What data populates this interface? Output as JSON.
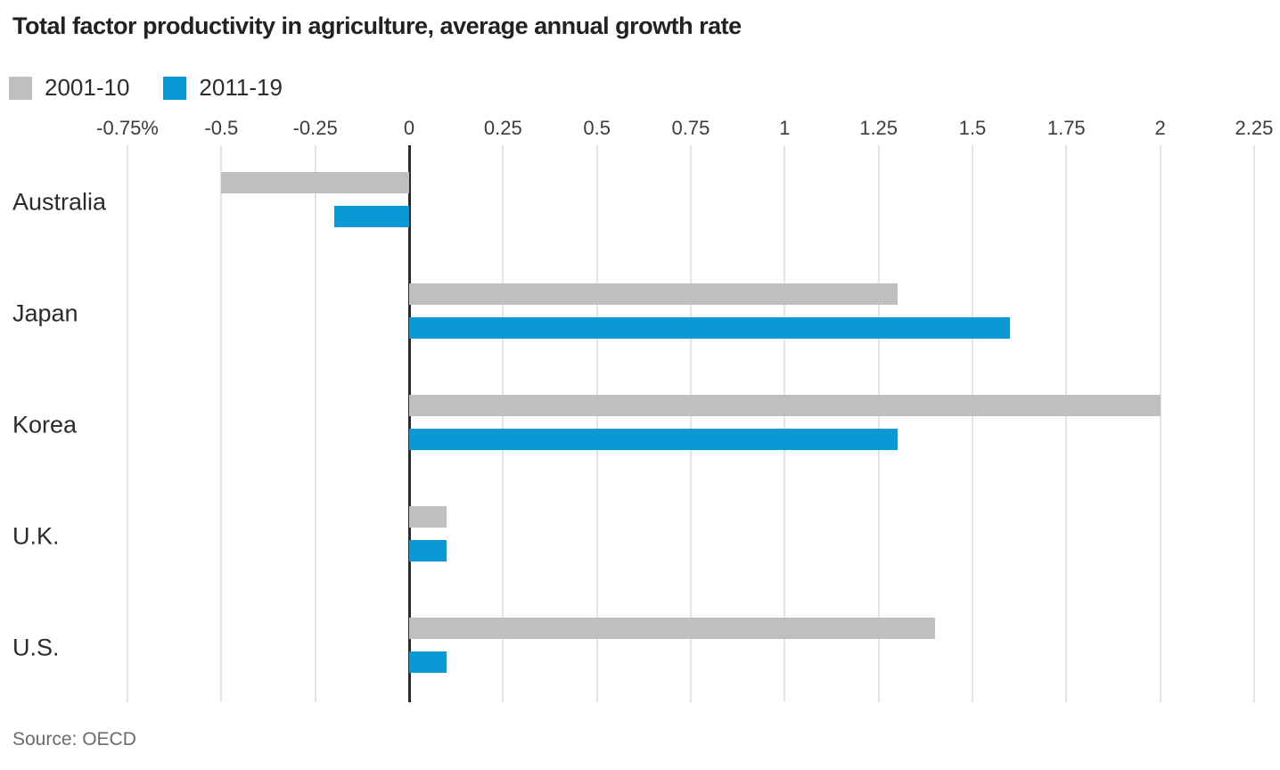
{
  "chart_data": {
    "type": "bar",
    "orientation": "horizontal",
    "title": "Total factor productivity in agriculture, average annual growth rate",
    "source": "Source: OECD",
    "unit": "%",
    "categories": [
      "Australia",
      "Japan",
      "Korea",
      "U.K.",
      "U.S."
    ],
    "series": [
      {
        "name": "2001-10",
        "color": "#bfbfbf",
        "values": [
          -0.5,
          1.3,
          2.0,
          0.1,
          1.4
        ]
      },
      {
        "name": "2011-19",
        "color": "#0a99d6",
        "values": [
          -0.2,
          1.6,
          1.3,
          0.1,
          0.1
        ]
      }
    ],
    "x_ticks": [
      -0.75,
      -0.5,
      -0.25,
      0,
      0.25,
      0.5,
      0.75,
      1,
      1.25,
      1.5,
      1.75,
      2,
      2.25
    ],
    "x_tick_labels": [
      "-0.75%",
      "-0.5",
      "-0.25",
      "0",
      "0.25",
      "0.5",
      "0.75",
      "1",
      "1.25",
      "1.5",
      "1.75",
      "2",
      "2.25"
    ],
    "xlim": [
      -0.85,
      2.32
    ],
    "grid": true,
    "legend_position": "top-left",
    "colors": {
      "grid": "#e4e4e4",
      "zero_line": "#2b2b2b",
      "title_text": "#222222",
      "tick_text": "#3c3c3c",
      "category_text": "#2b2b2b",
      "source_text": "#6b6b6b",
      "background": "#ffffff"
    }
  }
}
